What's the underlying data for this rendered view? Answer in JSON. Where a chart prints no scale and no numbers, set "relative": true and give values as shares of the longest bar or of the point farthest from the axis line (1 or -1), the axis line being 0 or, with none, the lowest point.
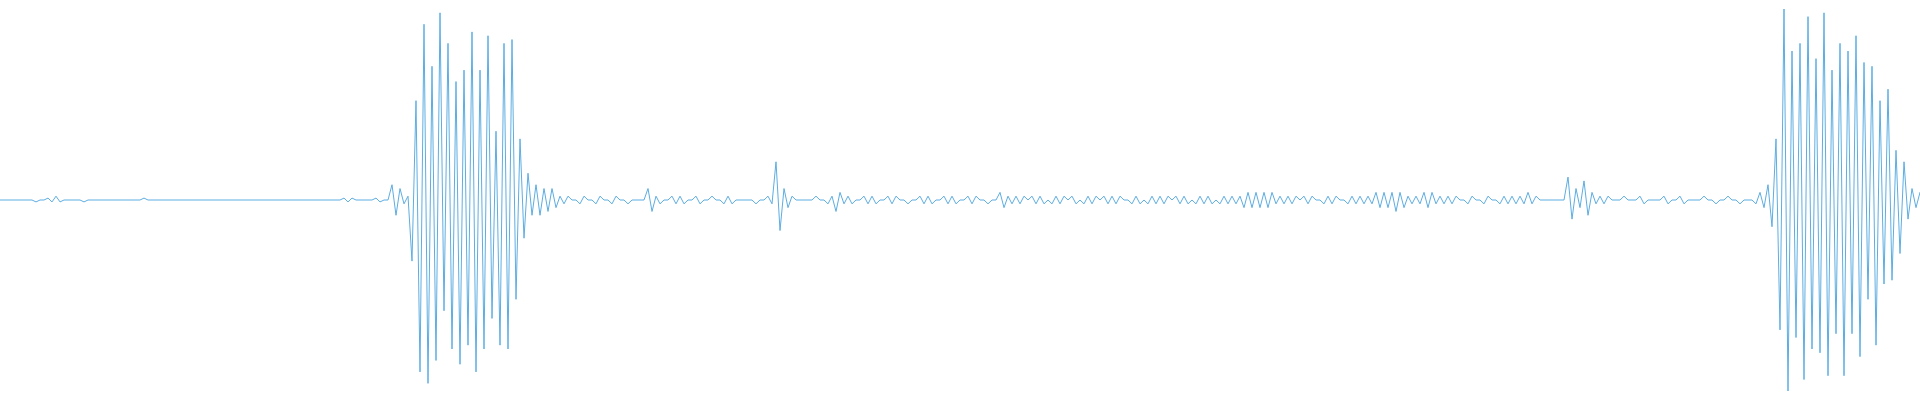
{
  "chart_data": {
    "type": "line",
    "relative": true,
    "categories": [
      null,
      null,
      null,
      null,
      null,
      null,
      null,
      null,
      null,
      null,
      null,
      null,
      null,
      null,
      null,
      null,
      null,
      null,
      null,
      null,
      null,
      null,
      null,
      null,
      null,
      null,
      null,
      null,
      null,
      null,
      null,
      null,
      null,
      null,
      null,
      null,
      null,
      null,
      null,
      null,
      null,
      null,
      null,
      null,
      null,
      null,
      null,
      null,
      null,
      null,
      null,
      null,
      null,
      null,
      null,
      null,
      null,
      null,
      null,
      null,
      null,
      null,
      null,
      null,
      null,
      null,
      null,
      null,
      null,
      null,
      null,
      null,
      null,
      null,
      null,
      null,
      null,
      null,
      null,
      null,
      null,
      null,
      null,
      null,
      null,
      null,
      null,
      null,
      null,
      null,
      null,
      null,
      null,
      null,
      null,
      null,
      null,
      null,
      null,
      null,
      null,
      null,
      null,
      null,
      null,
      null,
      null,
      null,
      null,
      null,
      null,
      null,
      null,
      null,
      null,
      null,
      null,
      null,
      null,
      null,
      null,
      null,
      null,
      null,
      null,
      null,
      null,
      null,
      null,
      null,
      null,
      null,
      null,
      null,
      null,
      null,
      null,
      null,
      null,
      null,
      null,
      null,
      null,
      null,
      null,
      null,
      null,
      null,
      null,
      null,
      null,
      null,
      null,
      null,
      null,
      null,
      null,
      null,
      null,
      null,
      null,
      null,
      null,
      null,
      null,
      null,
      null,
      null,
      null,
      null,
      null,
      null,
      null,
      null,
      null,
      null,
      null,
      null,
      null,
      null,
      null,
      null,
      null,
      null,
      null,
      null,
      null,
      null,
      null,
      null,
      null,
      null,
      null,
      null,
      null,
      null,
      null,
      null,
      null,
      null,
      null,
      null,
      null,
      null,
      null,
      null,
      null,
      null,
      null,
      null,
      null,
      null,
      null,
      null,
      null,
      null,
      null,
      null,
      null,
      null,
      null,
      null,
      null,
      null,
      null,
      null,
      null,
      null,
      null,
      null,
      null,
      null,
      null,
      null,
      null,
      null,
      null,
      null,
      null,
      null,
      null,
      null,
      null,
      null,
      null,
      null,
      null,
      null,
      null,
      null,
      null,
      null,
      null,
      null,
      null,
      null,
      null,
      null,
      null,
      null,
      null,
      null,
      null,
      null,
      null,
      null,
      null,
      null,
      null,
      null,
      null,
      null,
      null,
      null,
      null,
      null,
      null,
      null,
      null,
      null,
      null,
      null,
      null,
      null,
      null,
      null,
      null,
      null,
      null,
      null,
      null,
      null,
      null,
      null,
      null,
      null,
      null,
      null,
      null,
      null,
      null,
      null,
      null,
      null,
      null,
      null,
      null,
      null,
      null,
      null,
      null,
      null,
      null,
      null,
      null,
      null,
      null,
      null,
      null,
      null,
      null,
      null,
      null,
      null,
      null,
      null,
      null,
      null,
      null,
      null,
      null,
      null,
      null,
      null,
      null,
      null,
      null,
      null,
      null,
      null,
      null,
      null,
      null,
      null,
      null,
      null,
      null,
      null,
      null,
      null,
      null,
      null,
      null,
      null,
      null,
      null,
      null,
      null,
      null,
      null,
      null,
      null,
      null,
      null,
      null,
      null,
      null,
      null,
      null,
      null,
      null,
      null,
      null,
      null,
      null,
      null,
      null,
      null,
      null,
      null,
      null,
      null,
      null,
      null,
      null,
      null,
      null,
      null,
      null,
      null,
      null,
      null,
      null,
      null,
      null,
      null,
      null,
      null,
      null,
      null,
      null,
      null,
      null,
      null,
      null,
      null,
      null,
      null,
      null,
      null,
      null,
      null,
      null,
      null,
      null,
      null,
      null,
      null,
      null,
      null,
      null,
      null,
      null,
      null,
      null,
      null,
      null,
      null,
      null,
      null,
      null,
      null,
      null,
      null,
      null,
      null,
      null,
      null,
      null,
      null,
      null,
      null,
      null,
      null,
      null,
      null,
      null,
      null,
      null,
      null,
      null,
      null,
      null,
      null,
      null,
      null,
      null,
      null,
      null,
      null,
      null,
      null,
      null,
      null,
      null,
      null,
      null,
      null,
      null,
      null,
      null,
      null,
      null,
      null,
      null,
      null,
      null,
      null,
      null,
      null,
      null
    ],
    "series": [
      {
        "color": "#5dade2",
        "values": [
          0.5,
          0.5,
          0.5,
          0.5,
          0.5,
          0.5,
          0.5,
          0.5,
          0.5,
          0.495,
          0.5,
          0.5,
          0.505,
          0.495,
          0.51,
          0.495,
          0.5,
          0.5,
          0.5,
          0.5,
          0.5,
          0.495,
          0.5,
          0.5,
          0.5,
          0.5,
          0.5,
          0.5,
          0.5,
          0.5,
          0.5,
          0.5,
          0.5,
          0.5,
          0.5,
          0.5,
          0.505,
          0.5,
          0.5,
          0.5,
          0.5,
          0.5,
          0.5,
          0.5,
          0.5,
          0.5,
          0.5,
          0.5,
          0.5,
          0.5,
          0.5,
          0.5,
          0.5,
          0.5,
          0.5,
          0.5,
          0.5,
          0.5,
          0.5,
          0.5,
          0.5,
          0.5,
          0.5,
          0.5,
          0.5,
          0.5,
          0.5,
          0.5,
          0.5,
          0.5,
          0.5,
          0.5,
          0.5,
          0.5,
          0.5,
          0.5,
          0.5,
          0.5,
          0.5,
          0.5,
          0.5,
          0.5,
          0.5,
          0.5,
          0.5,
          0.5,
          0.505,
          0.495,
          0.505,
          0.5,
          0.5,
          0.5,
          0.5,
          0.5,
          0.505,
          0.495,
          0.5,
          0.5,
          0.54,
          0.46,
          0.53,
          0.49,
          0.51,
          0.34,
          0.76,
          0.05,
          0.96,
          0.02,
          0.85,
          0.08,
          0.99,
          0.21,
          0.91,
          0.11,
          0.81,
          0.07,
          0.84,
          0.12,
          0.94,
          0.05,
          0.84,
          0.11,
          0.93,
          0.19,
          0.68,
          0.12,
          0.91,
          0.11,
          0.92,
          0.24,
          0.66,
          0.4,
          0.57,
          0.46,
          0.54,
          0.46,
          0.53,
          0.47,
          0.53,
          0.48,
          0.51,
          0.49,
          0.51,
          0.5,
          0.5,
          0.49,
          0.51,
          0.5,
          0.5,
          0.49,
          0.51,
          0.5,
          0.5,
          0.49,
          0.51,
          0.5,
          0.5,
          0.49,
          0.5,
          0.5,
          0.5,
          0.5,
          0.53,
          0.47,
          0.51,
          0.49,
          0.5,
          0.5,
          0.51,
          0.49,
          0.51,
          0.49,
          0.5,
          0.5,
          0.51,
          0.49,
          0.5,
          0.5,
          0.51,
          0.5,
          0.5,
          0.49,
          0.51,
          0.49,
          0.5,
          0.5,
          0.5,
          0.5,
          0.5,
          0.49,
          0.5,
          0.5,
          0.51,
          0.49,
          0.6,
          0.42,
          0.53,
          0.48,
          0.51,
          0.5,
          0.5,
          0.5,
          0.5,
          0.5,
          0.51,
          0.5,
          0.5,
          0.49,
          0.51,
          0.47,
          0.52,
          0.49,
          0.51,
          0.49,
          0.5,
          0.5,
          0.51,
          0.49,
          0.51,
          0.49,
          0.5,
          0.5,
          0.51,
          0.49,
          0.51,
          0.5,
          0.5,
          0.49,
          0.5,
          0.5,
          0.51,
          0.49,
          0.51,
          0.49,
          0.5,
          0.5,
          0.51,
          0.49,
          0.51,
          0.49,
          0.5,
          0.5,
          0.51,
          0.49,
          0.51,
          0.5,
          0.5,
          0.49,
          0.5,
          0.5,
          0.52,
          0.48,
          0.51,
          0.49,
          0.51,
          0.49,
          0.51,
          0.5,
          0.51,
          0.49,
          0.51,
          0.49,
          0.5,
          0.49,
          0.51,
          0.49,
          0.51,
          0.5,
          0.51,
          0.49,
          0.5,
          0.49,
          0.51,
          0.49,
          0.51,
          0.5,
          0.51,
          0.49,
          0.51,
          0.49,
          0.51,
          0.5,
          0.5,
          0.49,
          0.51,
          0.49,
          0.5,
          0.49,
          0.51,
          0.49,
          0.51,
          0.49,
          0.51,
          0.5,
          0.51,
          0.49,
          0.51,
          0.49,
          0.5,
          0.49,
          0.51,
          0.49,
          0.51,
          0.49,
          0.5,
          0.49,
          0.51,
          0.49,
          0.51,
          0.49,
          0.51,
          0.48,
          0.52,
          0.48,
          0.52,
          0.48,
          0.52,
          0.48,
          0.52,
          0.49,
          0.51,
          0.49,
          0.51,
          0.49,
          0.51,
          0.5,
          0.51,
          0.49,
          0.51,
          0.5,
          0.5,
          0.49,
          0.51,
          0.49,
          0.51,
          0.5,
          0.5,
          0.49,
          0.51,
          0.49,
          0.51,
          0.49,
          0.51,
          0.49,
          0.52,
          0.48,
          0.52,
          0.48,
          0.52,
          0.47,
          0.52,
          0.48,
          0.51,
          0.49,
          0.51,
          0.49,
          0.52,
          0.48,
          0.52,
          0.49,
          0.51,
          0.49,
          0.51,
          0.49,
          0.51,
          0.5,
          0.5,
          0.49,
          0.51,
          0.5,
          0.5,
          0.49,
          0.51,
          0.5,
          0.5,
          0.49,
          0.51,
          0.49,
          0.51,
          0.49,
          0.51,
          0.49,
          0.52,
          0.49,
          0.51,
          0.5,
          0.5,
          0.5,
          0.5,
          0.5,
          0.5,
          0.5,
          0.56,
          0.45,
          0.53,
          0.48,
          0.55,
          0.46,
          0.52,
          0.49,
          0.51,
          0.49,
          0.51,
          0.5,
          0.5,
          0.5,
          0.51,
          0.5,
          0.5,
          0.5,
          0.51,
          0.49,
          0.5,
          0.5,
          0.5,
          0.5,
          0.51,
          0.49,
          0.5,
          0.5,
          0.51,
          0.49,
          0.5,
          0.5,
          0.5,
          0.5,
          0.51,
          0.5,
          0.5,
          0.49,
          0.5,
          0.5,
          0.51,
          0.5,
          0.5,
          0.49,
          0.5,
          0.5,
          0.5,
          0.49,
          0.52,
          0.48,
          0.54,
          0.43,
          0.66,
          0.16,
          1.0,
          0.0,
          0.89,
          0.14,
          0.91,
          0.03,
          0.98,
          0.11,
          0.87,
          0.1,
          0.99,
          0.04,
          0.84,
          0.15,
          0.91,
          0.04,
          0.89,
          0.15,
          0.93,
          0.09,
          0.86,
          0.24,
          0.85,
          0.12,
          0.76,
          0.28,
          0.79,
          0.29,
          0.63,
          0.36,
          0.6,
          0.45,
          0.53,
          0.48,
          0.52
        ]
      }
    ]
  }
}
